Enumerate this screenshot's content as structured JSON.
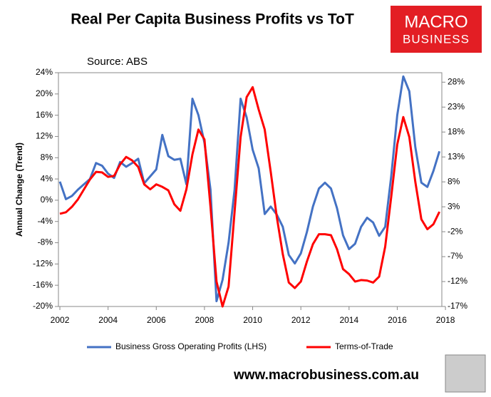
{
  "title": "Real Per Capita Business Profits vs ToT",
  "source": "Source: ABS",
  "logo": {
    "line1": "MACRO",
    "line2": "BUSINESS"
  },
  "url": "www.macrobusiness.com.au",
  "chart_data": {
    "type": "line",
    "ylabel": "Annual Change (Trend)",
    "x": [
      2002,
      2002.25,
      2002.5,
      2002.75,
      2003,
      2003.25,
      2003.5,
      2003.75,
      2004,
      2004.25,
      2004.5,
      2004.75,
      2005,
      2005.25,
      2005.5,
      2005.75,
      2006,
      2006.25,
      2006.5,
      2006.75,
      2007,
      2007.25,
      2007.5,
      2007.75,
      2008,
      2008.25,
      2008.5,
      2008.75,
      2009,
      2009.25,
      2009.5,
      2009.75,
      2010,
      2010.25,
      2010.5,
      2010.75,
      2011,
      2011.25,
      2011.5,
      2011.75,
      2012,
      2012.25,
      2012.5,
      2012.75,
      2013,
      2013.25,
      2013.5,
      2013.75,
      2014,
      2014.25,
      2014.5,
      2014.75,
      2015,
      2015.25,
      2015.5,
      2015.75,
      2016,
      2016.25,
      2016.5,
      2016.75,
      2017,
      2017.25,
      2017.5,
      2017.75
    ],
    "xlim": [
      2001.94,
      2017.85
    ],
    "xticks": [
      2002,
      2004,
      2006,
      2008,
      2010,
      2012,
      2014,
      2016,
      2018
    ],
    "ylim": [
      -20,
      24
    ],
    "yticks": [
      {
        "value": 24,
        "label": "24%"
      },
      {
        "value": 20,
        "label": "20%"
      },
      {
        "value": 16,
        "label": "16%"
      },
      {
        "value": 12,
        "label": "12%"
      },
      {
        "value": 8,
        "label": "8%"
      },
      {
        "value": 4,
        "label": "4%"
      },
      {
        "value": 0,
        "label": "0%"
      },
      {
        "value": -4,
        "label": "-4%"
      },
      {
        "value": -8,
        "label": "-8%"
      },
      {
        "value": -12,
        "label": "-12%"
      },
      {
        "value": -16,
        "label": "-16%"
      },
      {
        "value": -20,
        "label": "-20%"
      }
    ],
    "y2lim": [
      -17,
      29.9
    ],
    "y2ticks": [
      {
        "value": 28,
        "label": "28%"
      },
      {
        "value": 23,
        "label": "23%"
      },
      {
        "value": 18,
        "label": "18%"
      },
      {
        "value": 13,
        "label": "13%"
      },
      {
        "value": 8,
        "label": "8%"
      },
      {
        "value": 3,
        "label": "3%"
      },
      {
        "value": -2,
        "label": "-2%"
      },
      {
        "value": -7,
        "label": "-7%"
      },
      {
        "value": -12,
        "label": "-12%"
      },
      {
        "value": -17,
        "label": "-17%"
      }
    ],
    "grid": false,
    "series": [
      {
        "name": "Business Gross Operating Profits (LHS)",
        "color": "#4472c4",
        "axis": "y",
        "values": [
          3.5,
          0.2,
          0.8,
          2,
          3,
          4,
          7,
          6.5,
          5,
          4.2,
          7.2,
          6.3,
          7,
          7.8,
          3.2,
          4.5,
          5.8,
          12.3,
          8.3,
          7.6,
          7.8,
          3,
          19.1,
          16,
          10.8,
          2,
          -19,
          -15,
          -8,
          2,
          19.1,
          15.6,
          9.5,
          6,
          -2.6,
          -1.2,
          -2.7,
          -5,
          -10.3,
          -11.9,
          -10,
          -6,
          -1.2,
          2.2,
          3.3,
          2.2,
          -1.5,
          -6.6,
          -9.2,
          -8.2,
          -5,
          -3.3,
          -4.2,
          -6.7,
          -5,
          4.5,
          16,
          23.3,
          20.5,
          10,
          3.3,
          2.5,
          5.5,
          9.2
        ]
      },
      {
        "name": "Terms-of-Trade",
        "color": "#ff0000",
        "axis": "y2",
        "values": [
          1.6,
          1.9,
          3,
          4.5,
          6.5,
          8.5,
          10,
          9.9,
          9,
          9.2,
          11.5,
          13,
          12.3,
          11,
          7.5,
          6.5,
          7.5,
          7,
          6.3,
          3.5,
          2.2,
          6.5,
          13.5,
          18.5,
          16.5,
          3,
          -12,
          -17,
          -13,
          2,
          17,
          25,
          27,
          22.5,
          18.5,
          10,
          1,
          -6.5,
          -12.2,
          -13.3,
          -12,
          -8,
          -4.5,
          -2.5,
          -2.5,
          -2.7,
          -5.5,
          -9.5,
          -10.5,
          -12,
          -11.7,
          -11.8,
          -12.2,
          -11,
          -5,
          5,
          15.5,
          21,
          17,
          8,
          0.5,
          -1.5,
          -0.5,
          2
        ]
      }
    ],
    "legend": "bottom"
  }
}
